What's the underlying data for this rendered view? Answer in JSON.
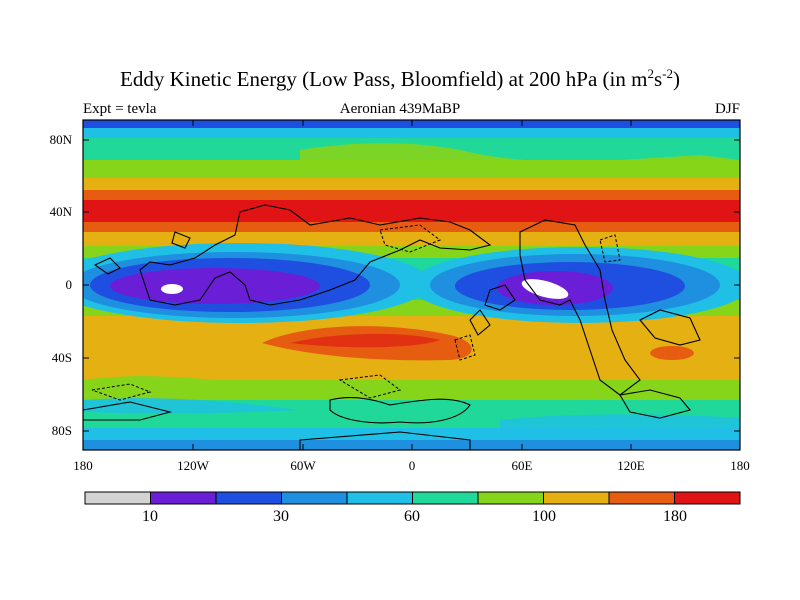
{
  "title_main": "Eddy Kinetic Energy (Low Pass, Bloomfield) at 200 hPa (in m",
  "title_sup1": "2",
  "title_mid": "s",
  "title_sup2": "-2",
  "title_end": ")",
  "left_subtitle": "Expt = tevla",
  "center_subtitle": "Aeronian 439MaBP",
  "right_subtitle": "DJF",
  "lat_ticks": [
    "80N",
    "40N",
    "0",
    "40S",
    "80S"
  ],
  "lon_ticks": [
    "180",
    "120W",
    "60W",
    "0",
    "60E",
    "120E",
    "180"
  ],
  "colorbar": {
    "colors": [
      "#d3d3d3",
      "#6a1fd6",
      "#1f4fe0",
      "#1f8fe0",
      "#1fbfe6",
      "#1fd89a",
      "#86d51a",
      "#e4b012",
      "#e65c10",
      "#e01414"
    ],
    "labels": [
      "10",
      "30",
      "60",
      "100",
      "180"
    ]
  },
  "palette": {
    "white": "#d3d3d3",
    "purple": "#6a1fd6",
    "blue": "#1f4fe0",
    "mid_blue": "#1f8fe0",
    "cyan": "#1fbfe6",
    "green_teal": "#1fd89a",
    "light_green": "#86d51a",
    "yellow": "#e4b012",
    "orange": "#e65c10",
    "red": "#e01414"
  }
}
